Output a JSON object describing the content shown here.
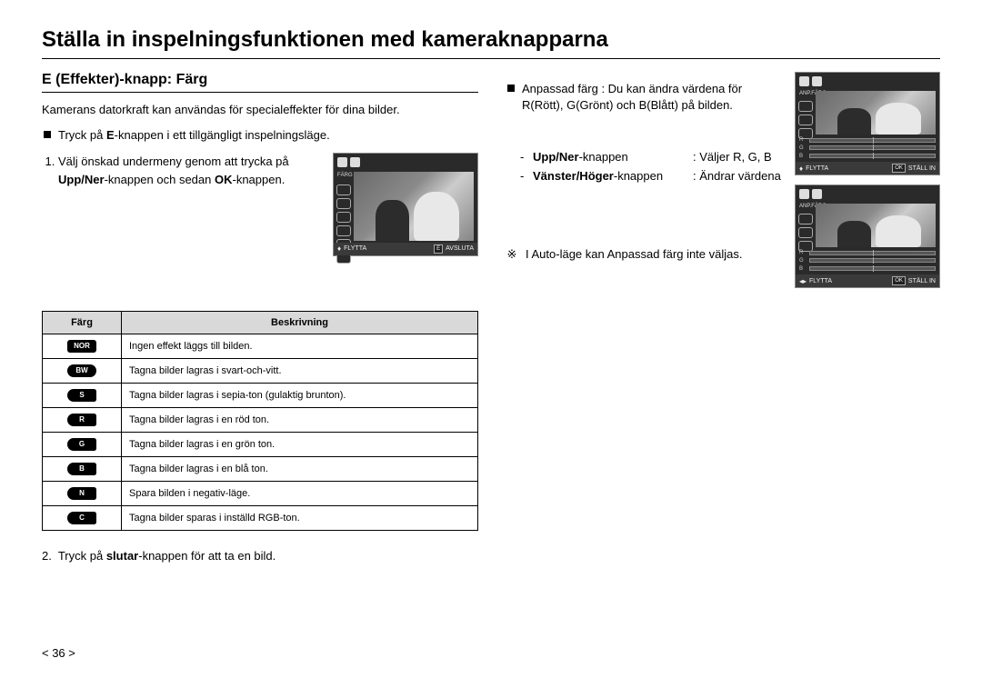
{
  "page": {
    "main_title": "Ställa in inspelningsfunktionen med kameraknapparna",
    "page_number": "< 36 >"
  },
  "left": {
    "section_title": "E (Effekter)-knapp: Färg",
    "intro": "Kamerans datorkraft kan användas för specialeffekter för dina bilder.",
    "bullet_html": "Tryck på <b>E</b>-knappen i ett tillgängligt inspelningsläge.",
    "step1_html": "Välj önskad undermeny genom att trycka på <b>Upp/Ner</b>-knappen och sedan <b>OK</b>-knappen.",
    "step2_html": "Tryck på <b>slutar</b>-knappen för att ta en bild.",
    "preview": {
      "side_label": "FÄRG",
      "bb_left_label": "FLYTTA",
      "bb_mid_btn": "E",
      "bb_right_label": "AVSLUTA"
    },
    "table": {
      "col_icon": "Färg",
      "col_desc": "Beskrivning",
      "rows": [
        {
          "icon": "NOR",
          "shape": "rect",
          "desc": "Ingen effekt läggs till bilden."
        },
        {
          "icon": "BW",
          "shape": "pill",
          "desc": "Tagna bilder lagras i svart-och-vitt."
        },
        {
          "icon": "S",
          "shape": "round-left",
          "desc": "Tagna bilder lagras i sepia-ton (gulaktig brunton)."
        },
        {
          "icon": "R",
          "shape": "round-left",
          "desc": "Tagna bilder lagras i en röd ton."
        },
        {
          "icon": "G",
          "shape": "round-left",
          "desc": "Tagna bilder lagras i en grön ton."
        },
        {
          "icon": "B",
          "shape": "round-left",
          "desc": "Tagna bilder lagras i en blå ton."
        },
        {
          "icon": "N",
          "shape": "round-left",
          "desc": "Spara bilden i negativ-läge."
        },
        {
          "icon": "C",
          "shape": "round-left",
          "desc": "Tagna bilder sparas i inställd RGB-ton."
        }
      ]
    }
  },
  "right": {
    "anpassad_bullet": "Anpassad färg : Du kan ändra värdena för R(Rött), G(Grönt) och B(Blått) på bilden.",
    "kv": [
      {
        "key_html": "<b>Upp/Ner</b>-knappen",
        "val": ": Väljer R, G, B"
      },
      {
        "key_html": "<b>Vänster/Höger</b>-knappen",
        "val": ": Ändrar värdena"
      }
    ],
    "note": "I Auto-läge kan Anpassad färg inte väljas.",
    "preview": {
      "side_label": "ANP.FÄRG",
      "bb_left_label": "FLYTTA",
      "bb_mid_btn": "OK",
      "bb_right_label": "STÄLL IN"
    },
    "rgb_labels": [
      "R",
      "G",
      "B"
    ]
  }
}
